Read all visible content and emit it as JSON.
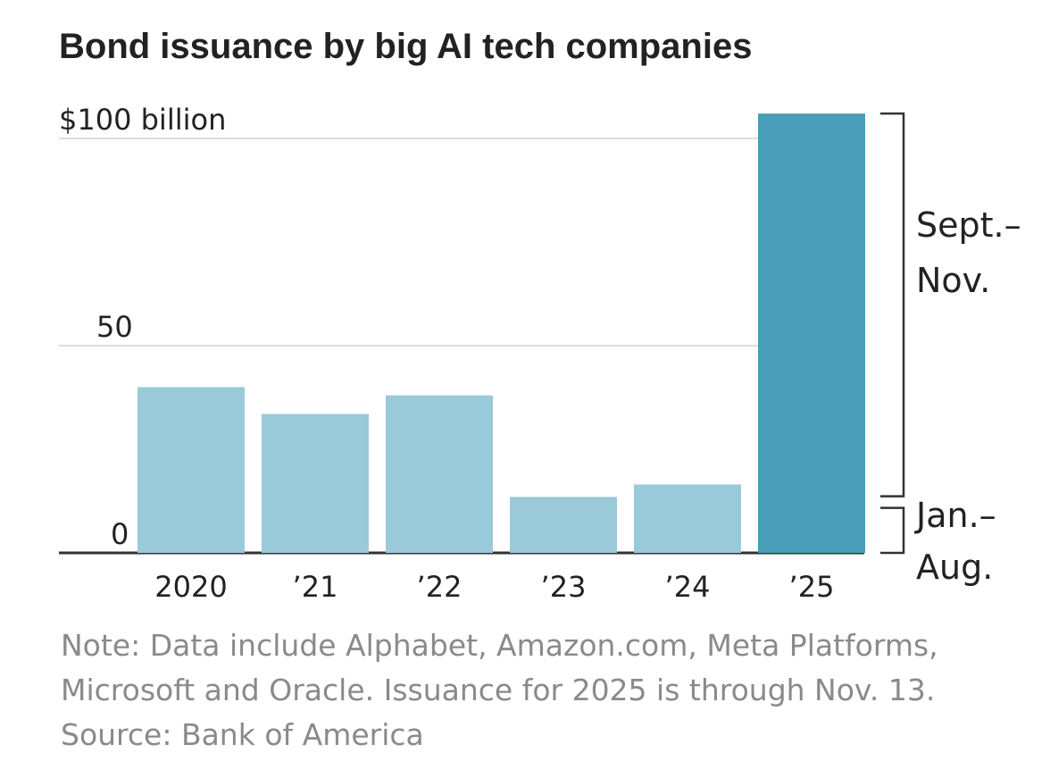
{
  "chart_data": {
    "type": "bar",
    "title": "Bond issuance by big AI tech companies",
    "categories": [
      "2020",
      "’21",
      "’22",
      "’23",
      "’24",
      "’25"
    ],
    "values": [
      40,
      33.5,
      38,
      13.5,
      16.5,
      106
    ],
    "stacked_2025": {
      "jan_aug": 13,
      "sept_nov": 93
    },
    "y_ticks": [
      {
        "value": 100,
        "label": "$100 billion"
      },
      {
        "value": 50,
        "label": "50"
      },
      {
        "value": 0,
        "label": "0"
      }
    ],
    "ylim": [
      0,
      106
    ],
    "xlabel": "",
    "ylabel": "",
    "annotations": {
      "upper": [
        "Sept.–",
        "Nov."
      ],
      "lower": [
        "Jan.–",
        "Aug."
      ]
    },
    "colors": {
      "bar": "#9ac9d9",
      "highlight": "#4a9db8",
      "grid": "#dddddd",
      "axis": "#333333"
    }
  },
  "note": {
    "lines": [
      "Note: Data include Alphabet, Amazon.com, Meta Platforms,",
      "Microsoft and Oracle. Issuance for 2025 is through Nov. 13."
    ],
    "source": "Source: Bank of America"
  }
}
